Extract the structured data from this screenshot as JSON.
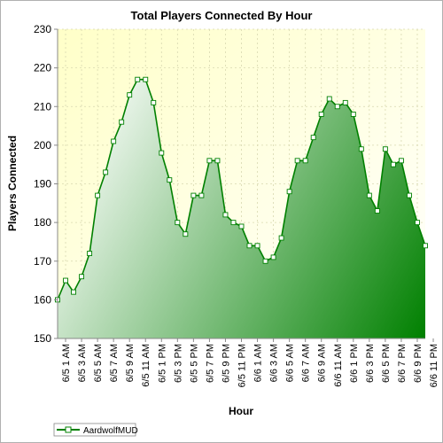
{
  "chart_data": {
    "type": "area",
    "title": "Total Players Connected By Hour",
    "xlabel": "Hour",
    "ylabel": "Players Connected",
    "ylim": [
      150,
      230
    ],
    "yticks": [
      150,
      160,
      170,
      180,
      190,
      200,
      210,
      220,
      230
    ],
    "grid": true,
    "legend_position": "bottom-left",
    "x_tick_labels": [
      "6/5 1 AM",
      "6/5 3 AM",
      "6/5 5 AM",
      "6/5 7 AM",
      "6/5 9 AM",
      "6/5 11 AM",
      "6/5 1 PM",
      "6/5 3 PM",
      "6/5 5 PM",
      "6/5 7 PM",
      "6/5 9 PM",
      "6/5 11 PM",
      "6/6 1 AM",
      "6/6 3 AM",
      "6/6 5 AM",
      "6/6 7 AM",
      "6/6 9 AM",
      "6/6 11 AM",
      "6/6 1 PM",
      "6/6 3 PM",
      "6/6 5 PM",
      "6/6 7 PM",
      "6/6 9 PM",
      "6/6 11 PM"
    ],
    "series": [
      {
        "name": "AardwolfMUD",
        "color": "#008000",
        "values": [
          160,
          165,
          162,
          166,
          172,
          187,
          193,
          201,
          206,
          213,
          217,
          217,
          211,
          198,
          191,
          180,
          177,
          187,
          187,
          196,
          196,
          182,
          180,
          179,
          174,
          174,
          170,
          171,
          176,
          188,
          196,
          196,
          202,
          208,
          212,
          210,
          211,
          208,
          199,
          187,
          183,
          199,
          195,
          196,
          187,
          180,
          174
        ]
      }
    ]
  },
  "colors": {
    "plot_background_top": "#ffffc8",
    "plot_background_bottom": "#ffffff",
    "area_light": "#ffffff",
    "area_dark": "#008000",
    "line": "#008000"
  }
}
